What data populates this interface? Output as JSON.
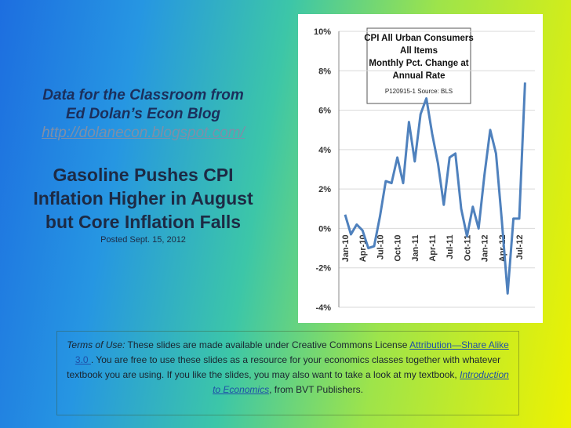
{
  "slide": {
    "heading": [
      "Data for the Classroom from",
      "Ed Dolan’s Econ Blog"
    ],
    "link": "http://dolanecon.blogspot.com/",
    "headline": [
      "Gasoline Pushes CPI",
      "Inflation Higher in August",
      "but Core Inflation Falls"
    ],
    "posted": "Posted  Sept. 15, 2012",
    "footer": [
      "Terms of Use:",
      " These slides are made available under Creative Commons License ",
      "Attribution—Share Alike 3.0 ",
      ". You are free to use these slides as a resource for your economics classes together with whatever textbook you are using. If you like the slides, you may also want to take a look at my textbook, ",
      "Introduction to Economics",
      ", from BVT Publishers."
    ]
  },
  "chart_data": {
    "type": "line",
    "title": [
      "CPI All Urban Consumers",
      "All Items",
      "Monthly Pct. Change at",
      "Annual Rate"
    ],
    "note": "P120915-1 Source: BLS",
    "categories": [
      "Jan-10",
      null,
      null,
      "Apr-10",
      null,
      null,
      "Jul-10",
      null,
      null,
      "Oct-10",
      null,
      null,
      "Jan-11",
      null,
      null,
      "Apr-11",
      null,
      null,
      "Jul-11",
      null,
      null,
      "Oct-11",
      null,
      null,
      "Jan-12",
      null,
      null,
      "Apr-12",
      null,
      null,
      "Jul-12",
      null
    ],
    "series": [
      {
        "color": "#4f81bd",
        "values": [
          0.7,
          -0.3,
          0.2,
          -0.1,
          -1.0,
          -0.9,
          0.6,
          2.4,
          2.3,
          3.6,
          2.3,
          5.4,
          3.4,
          5.8,
          6.6,
          4.8,
          3.3,
          1.2,
          3.6,
          3.8,
          1.0,
          -0.4,
          1.1,
          0.0,
          2.7,
          5.0,
          3.8,
          0.4,
          -3.3,
          0.5,
          0.5,
          7.4
        ]
      }
    ],
    "ylim": [
      -4,
      10
    ],
    "yticks": [
      {
        "value": -4,
        "label": "-4%"
      },
      {
        "value": -2,
        "label": "-2%"
      },
      {
        "value": 0,
        "label": "0%"
      },
      {
        "value": 2,
        "label": "2%"
      },
      {
        "value": 4,
        "label": "4%"
      },
      {
        "value": 6,
        "label": "6%"
      },
      {
        "value": 8,
        "label": "8%"
      },
      {
        "value": 10,
        "label": "10%"
      }
    ],
    "grid": true
  }
}
